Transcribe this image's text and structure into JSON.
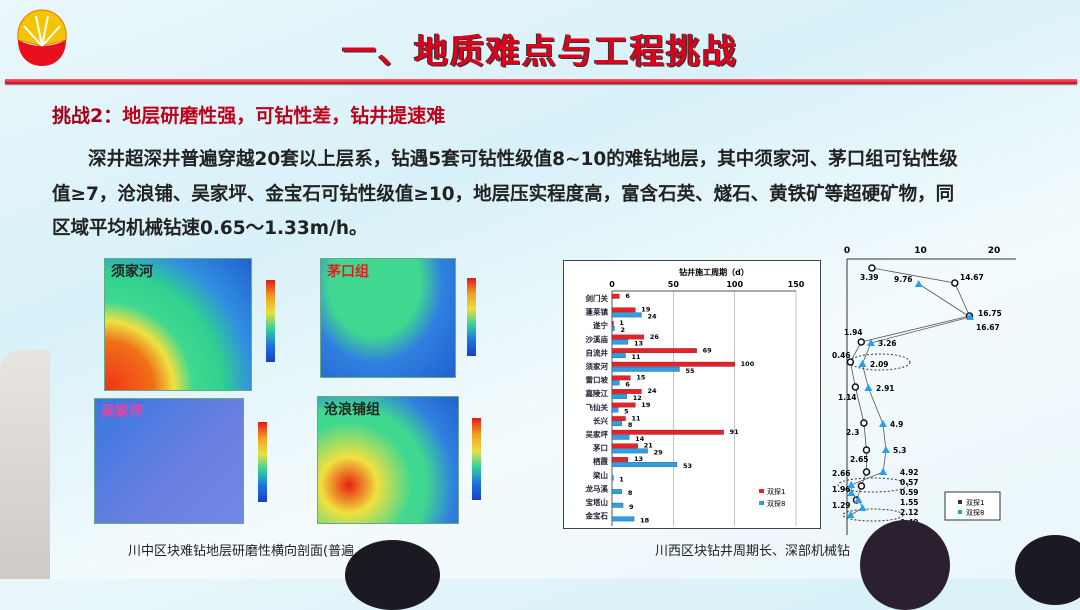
{
  "header": {
    "title": "一、地质难点与工程挑战",
    "logo": "cnpc-logo"
  },
  "subtitle": {
    "prefix": "挑战2：",
    "text": "地层研磨性强，可钻性差，钻井提速难"
  },
  "body": {
    "lines": [
      "深井超深井普遍穿越20套以上层系，钻遇5套可钻性级值8~10的难钻地层，其中须家河、茅口组可钻性级",
      "值≥7，沧浪铺、吴家坪、金宝石可钻性级值≥10，地层压实程度高，富含石英、燧石、黄铁矿等超硬矿物，同",
      "区域平均机械钻速0.65～1.33m/h。"
    ]
  },
  "maps": {
    "panels": [
      {
        "label": "须家河"
      },
      {
        "label": "茅口组"
      },
      {
        "label": "吴家坪"
      },
      {
        "label": "沧浪铺组"
      }
    ],
    "caption": "川中区块难钻地层研磨性横向剖面(普遍"
  },
  "right_caption": "川西区块钻井周期长、深部机械钻",
  "chart_data": [
    {
      "type": "bar",
      "orientation": "horizontal",
      "title": "钻井施工周期（d）",
      "categories": [
        "剑门关",
        "蓬莱镇",
        "遂宁",
        "沙溪庙",
        "自流井",
        "须家河",
        "雷口坡",
        "嘉陵江",
        "飞仙关",
        "长兴",
        "吴家坪",
        "茅口",
        "栖霞",
        "梁山",
        "龙马溪",
        "宝塔山",
        "金宝石"
      ],
      "xticks": [
        "0",
        "50",
        "100",
        "150"
      ],
      "xlim": [
        0,
        150
      ],
      "series": [
        {
          "name": "双探1",
          "color": "#e8202a",
          "values": [
            6,
            19,
            1,
            26,
            69,
            100,
            15,
            24,
            19,
            11,
            91,
            21,
            13,
            null,
            null,
            null,
            null
          ]
        },
        {
          "name": "双探8",
          "color": "#2aa0e8",
          "values": [
            null,
            24,
            2,
            13,
            11,
            55,
            6,
            12,
            5,
            8,
            14,
            29,
            53,
            1,
            8,
            9,
            18
          ]
        }
      ],
      "legend": "bottom-right"
    },
    {
      "type": "line",
      "xticks": [
        "0",
        "10",
        "20"
      ],
      "xlim": [
        0,
        20
      ],
      "series": [
        {
          "name": "双探1",
          "marker": "circle",
          "values": [
            3.39,
            14.67,
            16.67,
            1.94,
            0.46,
            1.14,
            2.3,
            2.65,
            2.66,
            1.96,
            1.29
          ]
        },
        {
          "name": "双探8",
          "marker": "triangle",
          "color": "#2aa0e8",
          "values": [
            9.76,
            16.75,
            3.26,
            2.09,
            2.91,
            4.9,
            5.3,
            4.92,
            0.57,
            0.59,
            1.55,
            2.12,
            0.49
          ]
        }
      ],
      "legend": "bottom-right"
    }
  ]
}
